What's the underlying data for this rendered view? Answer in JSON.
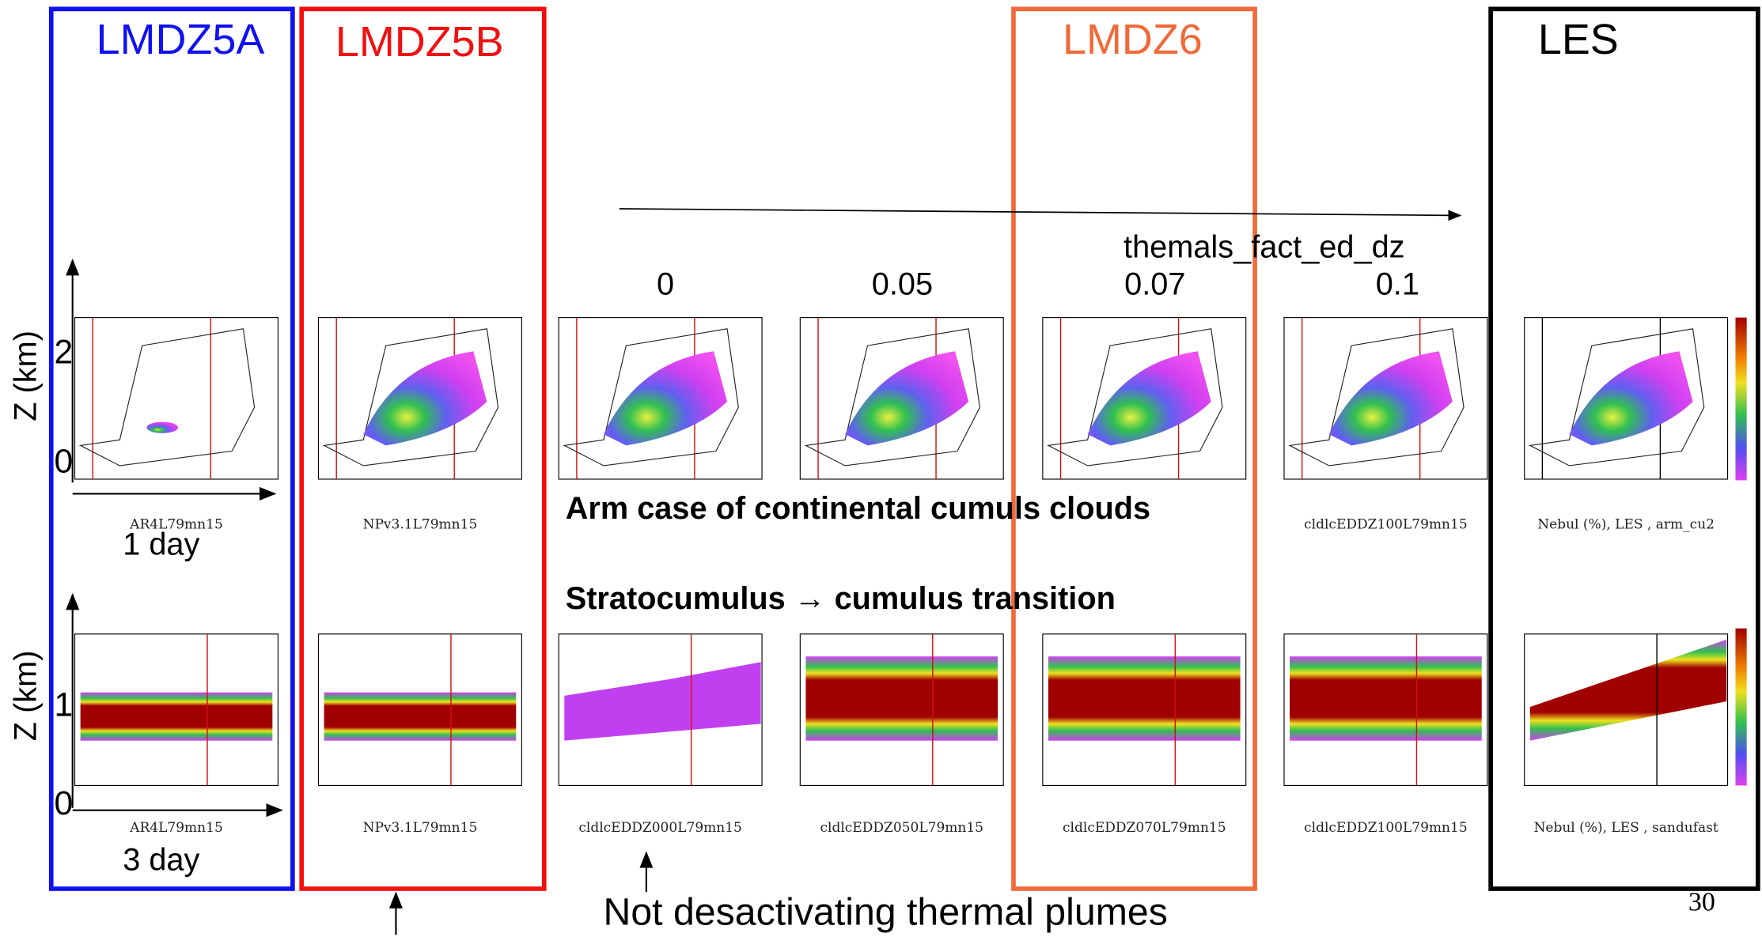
{
  "header": {
    "columns": [
      "LMDZ5A",
      "LMDZ5B",
      "LMDZ6",
      "LES"
    ]
  },
  "parameter": {
    "title": "themals_fact_ed_dz",
    "values": [
      "0",
      "0.05",
      "0.07",
      "0.1"
    ]
  },
  "axis": {
    "label_top": "Z (km)",
    "label_bottom": "Z (km)",
    "ticks_top": [
      "2",
      "0"
    ],
    "ticks_bottom": [
      "1",
      "0"
    ],
    "duration_top": "1 day",
    "duration_bottom": "3 day"
  },
  "cases": {
    "arm": "Arm case of continental cumuls clouds",
    "sc": "Stratocumulus → cumulus transition"
  },
  "row1_captions": [
    "AR4L79mn15",
    "NPv3.1L79mn15",
    "cldlcEDDZ100L79mn15",
    "Nebul (%), LES , arm_cu2"
  ],
  "row2_captions": [
    "AR4L79mn15",
    "NPv3.1L79mn15",
    "cldlcEDDZ000L79mn15",
    "cldlcEDDZ050L79mn15",
    "cldlcEDDZ070L79mn15",
    "cldlcEDDZ100L79mn15",
    "Nebul (%), LES , sandufast"
  ],
  "footnote": "Not desactivating thermal plumes",
  "page_number": "30"
}
